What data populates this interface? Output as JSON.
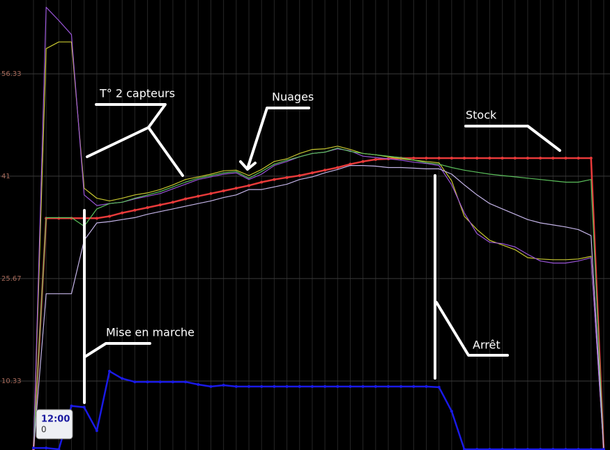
{
  "chart_data": {
    "type": "line",
    "categories": [
      null,
      null,
      null,
      null,
      null,
      null,
      null,
      null,
      null,
      null,
      null,
      null,
      null,
      null,
      null,
      null,
      null,
      null,
      null,
      null,
      null,
      null,
      null,
      null,
      null,
      null,
      null,
      null,
      null,
      null,
      null,
      null,
      null,
      null,
      null,
      null,
      null,
      null,
      null,
      null,
      null,
      null,
      null,
      null,
      null,
      null
    ],
    "ylim": [
      0,
      67.38
    ],
    "yticks": [
      10.33,
      25.67,
      41,
      56.33
    ],
    "grid": true,
    "series": [
      {
        "color": "#e83a3a",
        "marker": true,
        "values": [
          0,
          34.7,
          34.7,
          34.7,
          34.7,
          34.7,
          35.0,
          35.5,
          35.9,
          36.3,
          36.7,
          37.1,
          37.6,
          38.0,
          38.4,
          38.8,
          39.2,
          39.6,
          40.1,
          40.5,
          40.8,
          41.1,
          41.5,
          41.9,
          42.3,
          42.8,
          43.2,
          43.5,
          43.6,
          43.7,
          43.7,
          43.7,
          43.7,
          43.7,
          43.7,
          43.7,
          43.7,
          43.7,
          43.7,
          43.7,
          43.7,
          43.7,
          43.7,
          43.7,
          43.7,
          0
        ]
      },
      {
        "color": "#c8c830",
        "marker": false,
        "values": [
          0,
          60.1,
          61.1,
          61.1,
          39.2,
          37.7,
          37.3,
          37.7,
          38.2,
          38.5,
          39.0,
          39.7,
          40.5,
          40.9,
          41.3,
          41.8,
          41.9,
          41.1,
          42.0,
          43.2,
          43.6,
          44.4,
          45.0,
          45.1,
          45.5,
          45.0,
          44.4,
          44.2,
          43.9,
          43.6,
          43.4,
          43.2,
          43.0,
          40.3,
          35.0,
          33.0,
          31.4,
          30.7,
          30.0,
          28.8,
          28.6,
          28.5,
          28.5,
          28.6,
          29.0,
          0
        ]
      },
      {
        "color": "#9a55d8",
        "marker": false,
        "values": [
          0,
          66.3,
          64.3,
          62.2,
          38.2,
          36.6,
          36.9,
          37.1,
          37.6,
          38.0,
          38.4,
          39.1,
          39.8,
          40.5,
          40.9,
          41.3,
          41.5,
          40.5,
          41.3,
          42.6,
          43.2,
          43.9,
          44.4,
          44.6,
          45.1,
          44.8,
          44.0,
          43.8,
          43.6,
          43.4,
          43.1,
          42.9,
          42.6,
          39.7,
          35.5,
          32.4,
          31.1,
          30.9,
          30.4,
          29.3,
          28.3,
          28.0,
          28.0,
          28.3,
          28.8,
          0
        ]
      },
      {
        "color": "#5cc05c",
        "marker": false,
        "values": [
          0,
          34.8,
          34.8,
          34.8,
          33.5,
          36.1,
          36.9,
          37.1,
          37.7,
          38.2,
          38.7,
          39.4,
          40.1,
          40.7,
          41.1,
          41.5,
          41.7,
          40.7,
          41.7,
          42.8,
          43.4,
          43.9,
          44.4,
          44.6,
          45.2,
          44.7,
          44.4,
          44.2,
          44.0,
          43.8,
          43.4,
          43.0,
          42.8,
          42.3,
          41.9,
          41.6,
          41.3,
          41.1,
          40.9,
          40.7,
          40.5,
          40.3,
          40.1,
          40.1,
          40.5,
          0
        ]
      },
      {
        "color": "#c4b4e8",
        "marker": false,
        "values": [
          0,
          23.4,
          23.4,
          23.4,
          31.4,
          34.0,
          34.2,
          34.5,
          34.8,
          35.3,
          35.7,
          36.1,
          36.5,
          36.9,
          37.3,
          37.8,
          38.2,
          39.0,
          39.0,
          39.4,
          39.8,
          40.5,
          40.9,
          41.5,
          42.0,
          42.6,
          42.6,
          42.5,
          42.3,
          42.3,
          42.2,
          42.1,
          42.1,
          41.3,
          39.7,
          38.2,
          36.9,
          36.1,
          35.3,
          34.5,
          34.0,
          33.7,
          33.4,
          33.0,
          32.1,
          0
        ]
      },
      {
        "color": "#1a1ae6",
        "marker": true,
        "values": [
          0.3,
          0.3,
          0.1,
          6.6,
          6.4,
          2.9,
          11.8,
          10.7,
          10.2,
          10.2,
          10.2,
          10.2,
          10.2,
          9.8,
          9.5,
          9.7,
          9.5,
          9.5,
          9.5,
          9.5,
          9.5,
          9.5,
          9.5,
          9.5,
          9.5,
          9.5,
          9.5,
          9.5,
          9.5,
          9.5,
          9.5,
          9.5,
          9.4,
          5.8,
          0.1,
          0.1,
          0.1,
          0.1,
          0.1,
          0.1,
          0.1,
          0.1,
          0.1,
          0.1,
          0.1,
          0.1
        ]
      }
    ],
    "annotations": [
      "T° 2 capteurs",
      "Nuages",
      "Stock",
      "Mise en marche",
      "Arrêt"
    ],
    "tooltip": {
      "time": "12:00",
      "value": 0
    }
  }
}
